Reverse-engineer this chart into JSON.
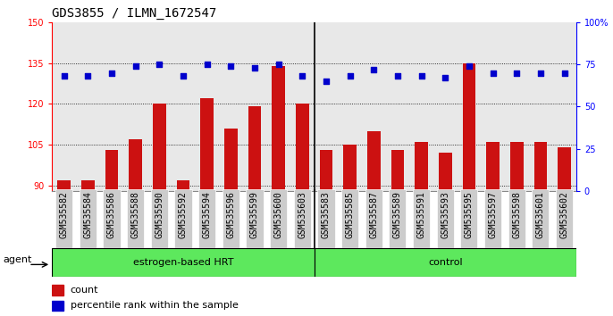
{
  "title": "GDS3855 / ILMN_1672547",
  "categories": [
    "GSM535582",
    "GSM535584",
    "GSM535586",
    "GSM535588",
    "GSM535590",
    "GSM535592",
    "GSM535594",
    "GSM535596",
    "GSM535599",
    "GSM535600",
    "GSM535603",
    "GSM535583",
    "GSM535585",
    "GSM535587",
    "GSM535589",
    "GSM535591",
    "GSM535593",
    "GSM535595",
    "GSM535597",
    "GSM535598",
    "GSM535601",
    "GSM535602"
  ],
  "bar_values": [
    92,
    92,
    103,
    107,
    120,
    92,
    122,
    111,
    119,
    134,
    120,
    103,
    105,
    110,
    103,
    106,
    102,
    135,
    106,
    106,
    106,
    104
  ],
  "dot_values_pct": [
    68,
    68,
    70,
    74,
    75,
    68,
    75,
    74,
    73,
    75,
    68,
    65,
    68,
    72,
    68,
    68,
    67,
    74,
    70,
    70,
    70,
    70
  ],
  "n_group1": 11,
  "n_group2": 11,
  "group1_label": "estrogen-based HRT",
  "group2_label": "control",
  "group_color": "#5de85d",
  "ylim_left": [
    88,
    150
  ],
  "ylim_right": [
    0,
    100
  ],
  "yticks_left": [
    90,
    105,
    120,
    135,
    150
  ],
  "yticks_right": [
    0,
    25,
    50,
    75,
    100
  ],
  "bar_color": "#cc1111",
  "dot_color": "#0000cc",
  "plot_bg": "#e8e8e8",
  "tick_bg": "#cccccc",
  "agent_label": "agent",
  "legend_count_label": "count",
  "legend_pct_label": "percentile rank within the sample",
  "title_fontsize": 10,
  "tick_fontsize": 7,
  "label_fontsize": 8
}
